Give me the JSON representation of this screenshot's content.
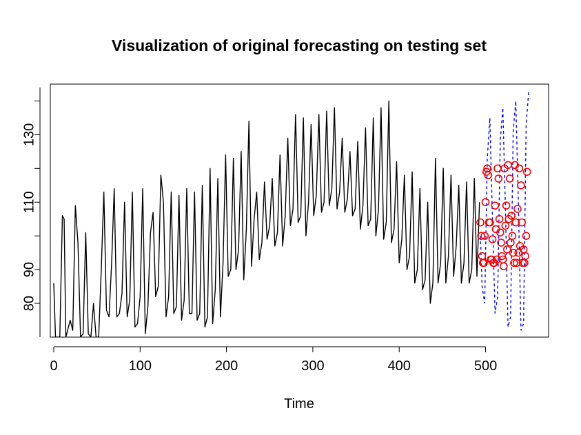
{
  "chart_data": {
    "type": "line",
    "title": "Visualization of original forecasting on testing set",
    "xlabel": "Time",
    "ylabel": "",
    "xlim": [
      -4,
      573
    ],
    "ylim": [
      70,
      145
    ],
    "grid": false,
    "legend": "none",
    "x_ticks": [
      0,
      100,
      200,
      300,
      400,
      500
    ],
    "y_ticks": [
      80,
      90,
      110,
      130
    ],
    "x_tick_labels": [
      "0",
      "100",
      "200",
      "300",
      "400",
      "500"
    ],
    "y_tick_labels": [
      "80",
      "90",
      "110",
      "130"
    ],
    "series": [
      {
        "style": "solid-line",
        "color": "#000000",
        "x": [
          0,
          2,
          5,
          7,
          10,
          12,
          14,
          16,
          19,
          22,
          25,
          28,
          31,
          34,
          37,
          40,
          43,
          46,
          49,
          52,
          55,
          58,
          61,
          64,
          67,
          70,
          73,
          76,
          79,
          82,
          85,
          88,
          91,
          94,
          97,
          100,
          103,
          106,
          109,
          112,
          115,
          118,
          121,
          124,
          127,
          130,
          133,
          136,
          139,
          142,
          145,
          148,
          151,
          154,
          157,
          160,
          163,
          166,
          169,
          172,
          175,
          178,
          181,
          184,
          187,
          190,
          193,
          196,
          199,
          202,
          205,
          208,
          211,
          214,
          217,
          220,
          223,
          226,
          229,
          232,
          235,
          238,
          241,
          244,
          247,
          250,
          253,
          256,
          259,
          262,
          265,
          268,
          271,
          274,
          277,
          280,
          283,
          286,
          289,
          292,
          295,
          298,
          301,
          304,
          307,
          310,
          313,
          316,
          319,
          322,
          325,
          328,
          331,
          334,
          337,
          340,
          343,
          346,
          349,
          352,
          355,
          358,
          361,
          364,
          367,
          370,
          373,
          376,
          379,
          382,
          385,
          388,
          391,
          394,
          397,
          400,
          403,
          406,
          409,
          412,
          415,
          418,
          421,
          424,
          427,
          430,
          433,
          436,
          439,
          442,
          445,
          448,
          451,
          454,
          457,
          460,
          463,
          466,
          469,
          472,
          475,
          478,
          481,
          484,
          487,
          490,
          493
        ],
        "y": [
          86,
          70,
          70,
          70,
          106,
          105,
          70,
          72,
          75,
          72,
          109,
          98,
          70,
          71,
          101,
          71,
          70,
          80,
          70,
          70,
          90,
          113,
          78,
          76,
          92,
          114,
          76,
          77,
          83,
          110,
          76,
          81,
          113,
          73,
          74,
          82,
          114,
          71,
          79,
          101,
          107,
          82,
          85,
          118,
          110,
          76,
          82,
          113,
          77,
          79,
          112,
          75,
          81,
          114,
          77,
          77,
          113,
          75,
          77,
          115,
          73,
          76,
          120,
          74,
          84,
          117,
          76,
          92,
          124,
          88,
          90,
          123,
          90,
          96,
          125,
          87,
          102,
          134,
          91,
          105,
          113,
          93,
          98,
          116,
          99,
          103,
          117,
          97,
          101,
          124,
          97,
          106,
          129,
          103,
          108,
          136,
          104,
          106,
          135,
          100,
          110,
          133,
          106,
          112,
          136,
          107,
          110,
          137,
          109,
          114,
          138,
          108,
          113,
          129,
          107,
          111,
          125,
          106,
          108,
          128,
          102,
          109,
          132,
          103,
          105,
          135,
          100,
          108,
          138,
          99,
          104,
          140,
          98,
          102,
          122,
          92,
          99,
          118,
          90,
          94,
          119,
          86,
          90,
          114,
          84,
          87,
          110,
          80,
          86,
          123,
          86,
          92,
          120,
          86,
          94,
          118,
          88,
          97,
          115,
          86,
          92,
          116,
          86,
          90,
          117,
          88,
          110
        ]
      },
      {
        "style": "dashed-line",
        "color": "#0000ff",
        "x": [
          494,
          496,
          499,
          502,
          505,
          508,
          511,
          514,
          517,
          520,
          523,
          526,
          529,
          532,
          535,
          538,
          541,
          544,
          547,
          550
        ],
        "y": [
          100,
          85,
          80,
          123,
          135,
          105,
          77,
          82,
          128,
          138,
          108,
          73,
          76,
          131,
          140,
          110,
          72,
          74,
          133,
          143
        ]
      },
      {
        "style": "open-circles",
        "color": "#ff0000",
        "x": [
          494,
          495,
          496,
          497,
          498,
          499,
          500,
          501,
          502,
          503,
          504,
          505,
          506,
          507,
          508,
          509,
          510,
          511,
          512,
          513,
          514,
          515,
          516,
          517,
          518,
          519,
          520,
          521,
          522,
          523,
          524,
          525,
          526,
          527,
          528,
          529,
          530,
          531,
          532,
          533,
          534,
          535,
          536,
          537,
          538,
          539,
          540,
          541,
          542,
          543,
          544,
          545,
          546,
          547,
          548
        ],
        "y": [
          104,
          100,
          94,
          92,
          92,
          100,
          110,
          119,
          120,
          118,
          104,
          104,
          93,
          93,
          99,
          92,
          92,
          109,
          102,
          93,
          120,
          117,
          105,
          101,
          98,
          94,
          93,
          91,
          120,
          103,
          109,
          96,
          121,
          105,
          117,
          98,
          106,
          100,
          95,
          92,
          121,
          104,
          92,
          108,
          95,
          120,
          97,
          115,
          104,
          92,
          96,
          92,
          94,
          100,
          119
        ]
      }
    ]
  }
}
